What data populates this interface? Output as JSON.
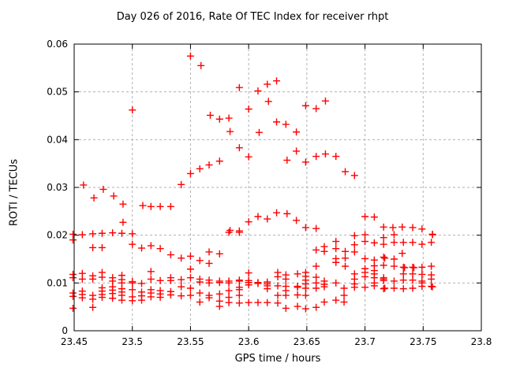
{
  "chart_data": {
    "type": "scatter",
    "title": "Day 026 of 2016, Rate Of TEC Index for receiver rhpt",
    "xlabel": "GPS time / hours",
    "ylabel": "ROTI / TECUs",
    "xlim": [
      23.45,
      23.8
    ],
    "ylim": [
      0,
      0.06
    ],
    "grid": true,
    "legend_position": "none",
    "marker": {
      "shape": "plus",
      "size": 9,
      "color": "#ff0000"
    },
    "colors": {
      "marker": "#ff0000",
      "grid": "#b0b0b0",
      "axis": "#000000",
      "background": "#ffffff"
    },
    "xticks": [
      {
        "v": 23.45,
        "label": "23.45"
      },
      {
        "v": 23.5,
        "label": "23.5"
      },
      {
        "v": 23.55,
        "label": "23.55"
      },
      {
        "v": 23.6,
        "label": "23.6"
      },
      {
        "v": 23.65,
        "label": "23.65"
      },
      {
        "v": 23.7,
        "label": "23.7"
      },
      {
        "v": 23.75,
        "label": "23.75"
      },
      {
        "v": 23.8,
        "label": "23.8"
      }
    ],
    "yticks": [
      {
        "v": 0,
        "label": "0"
      },
      {
        "v": 0.01,
        "label": "0.01"
      },
      {
        "v": 0.02,
        "label": "0.02"
      },
      {
        "v": 0.03,
        "label": "0.03"
      },
      {
        "v": 0.04,
        "label": "0.04"
      },
      {
        "v": 0.05,
        "label": "0.05"
      },
      {
        "v": 0.06,
        "label": "0.06"
      }
    ],
    "points": [
      [
        23.5,
        0.0462
      ],
      [
        23.55,
        0.0575
      ],
      [
        23.559,
        0.0555
      ],
      [
        23.592,
        0.0509
      ],
      [
        23.608,
        0.0502
      ],
      [
        23.616,
        0.0516
      ],
      [
        23.624,
        0.0523
      ],
      [
        23.617,
        0.048
      ],
      [
        23.6,
        0.0464
      ],
      [
        23.567,
        0.0451
      ],
      [
        23.575,
        0.0443
      ],
      [
        23.583,
        0.0445
      ],
      [
        23.584,
        0.0417
      ],
      [
        23.624,
        0.0437
      ],
      [
        23.609,
        0.0415
      ],
      [
        23.649,
        0.0471
      ],
      [
        23.658,
        0.0465
      ],
      [
        23.666,
        0.0481
      ],
      [
        23.632,
        0.0432
      ],
      [
        23.641,
        0.0416
      ],
      [
        23.458,
        0.0305
      ],
      [
        23.475,
        0.0296
      ],
      [
        23.467,
        0.0278
      ],
      [
        23.484,
        0.0282
      ],
      [
        23.492,
        0.0265
      ],
      [
        23.509,
        0.0262
      ],
      [
        23.516,
        0.026
      ],
      [
        23.524,
        0.026
      ],
      [
        23.533,
        0.026
      ],
      [
        23.492,
        0.0227
      ],
      [
        23.542,
        0.0306
      ],
      [
        23.55,
        0.0329
      ],
      [
        23.558,
        0.0339
      ],
      [
        23.566,
        0.0347
      ],
      [
        23.575,
        0.0355
      ],
      [
        23.592,
        0.0383
      ],
      [
        23.6,
        0.0364
      ],
      [
        23.633,
        0.0357
      ],
      [
        23.641,
        0.0376
      ],
      [
        23.649,
        0.0353
      ],
      [
        23.658,
        0.0365
      ],
      [
        23.666,
        0.037
      ],
      [
        23.675,
        0.0365
      ],
      [
        23.683,
        0.0333
      ],
      [
        23.691,
        0.0325
      ],
      [
        23.584,
        0.021
      ],
      [
        23.592,
        0.0209
      ],
      [
        23.6,
        0.0228
      ],
      [
        23.608,
        0.0239
      ],
      [
        23.616,
        0.0234
      ],
      [
        23.624,
        0.0247
      ],
      [
        23.633,
        0.0245
      ],
      [
        23.641,
        0.0231
      ],
      [
        23.649,
        0.0216
      ],
      [
        23.658,
        0.0214
      ],
      [
        23.7,
        0.0239
      ],
      [
        23.708,
        0.0238
      ],
      [
        23.716,
        0.0217
      ],
      [
        23.724,
        0.0216
      ],
      [
        23.732,
        0.0217
      ],
      [
        23.741,
        0.0216
      ],
      [
        23.749,
        0.0213
      ],
      [
        23.758,
        0.0202
      ],
      [
        23.449,
        0.0202
      ],
      [
        23.457,
        0.0201
      ],
      [
        23.466,
        0.0203
      ],
      [
        23.474,
        0.0204
      ],
      [
        23.483,
        0.0205
      ],
      [
        23.491,
        0.0204
      ],
      [
        23.5,
        0.0203
      ],
      [
        23.583,
        0.0206
      ],
      [
        23.592,
        0.0206
      ],
      [
        23.449,
        0.019
      ],
      [
        23.466,
        0.0174
      ],
      [
        23.474,
        0.0174
      ],
      [
        23.5,
        0.0181
      ],
      [
        23.508,
        0.0173
      ],
      [
        23.516,
        0.0178
      ],
      [
        23.524,
        0.0172
      ],
      [
        23.533,
        0.0159
      ],
      [
        23.542,
        0.0152
      ],
      [
        23.55,
        0.0156
      ],
      [
        23.566,
        0.0165
      ],
      [
        23.575,
        0.0161
      ],
      [
        23.558,
        0.0147
      ],
      [
        23.566,
        0.0141
      ],
      [
        23.55,
        0.0129
      ],
      [
        23.675,
        0.0187
      ],
      [
        23.691,
        0.0199
      ],
      [
        23.691,
        0.018
      ],
      [
        23.7,
        0.0201
      ],
      [
        23.7,
        0.0187
      ],
      [
        23.708,
        0.0184
      ],
      [
        23.716,
        0.0195
      ],
      [
        23.716,
        0.0181
      ],
      [
        23.658,
        0.0169
      ],
      [
        23.665,
        0.0176
      ],
      [
        23.665,
        0.0166
      ],
      [
        23.675,
        0.0172
      ],
      [
        23.675,
        0.0151
      ],
      [
        23.675,
        0.0143
      ],
      [
        23.683,
        0.0166
      ],
      [
        23.683,
        0.0152
      ],
      [
        23.683,
        0.0135
      ],
      [
        23.691,
        0.0165
      ],
      [
        23.7,
        0.0151
      ],
      [
        23.708,
        0.0148
      ],
      [
        23.708,
        0.0136
      ],
      [
        23.716,
        0.0154
      ],
      [
        23.716,
        0.0137
      ],
      [
        23.658,
        0.0135
      ],
      [
        23.725,
        0.0201
      ],
      [
        23.758,
        0.0201
      ],
      [
        23.725,
        0.0185
      ],
      [
        23.733,
        0.0185
      ],
      [
        23.741,
        0.0185
      ],
      [
        23.749,
        0.0181
      ],
      [
        23.757,
        0.0185
      ],
      [
        23.732,
        0.0162
      ],
      [
        23.725,
        0.015
      ],
      [
        23.717,
        0.0152
      ],
      [
        23.725,
        0.0135
      ],
      [
        23.733,
        0.0133
      ],
      [
        23.734,
        0.0132
      ],
      [
        23.741,
        0.0133
      ],
      [
        23.742,
        0.0132
      ],
      [
        23.749,
        0.0133
      ],
      [
        23.757,
        0.0135
      ],
      [
        23.733,
        0.0119
      ],
      [
        23.741,
        0.0119
      ],
      [
        23.749,
        0.0118
      ],
      [
        23.757,
        0.0117
      ],
      [
        23.449,
        0.0118
      ],
      [
        23.449,
        0.0111
      ],
      [
        23.457,
        0.012
      ],
      [
        23.457,
        0.0108
      ],
      [
        23.466,
        0.0115
      ],
      [
        23.466,
        0.0108
      ],
      [
        23.474,
        0.0122
      ],
      [
        23.474,
        0.0112
      ],
      [
        23.483,
        0.0111
      ],
      [
        23.483,
        0.0104
      ],
      [
        23.491,
        0.0116
      ],
      [
        23.491,
        0.0107
      ],
      [
        23.491,
        0.01
      ],
      [
        23.5,
        0.0103
      ],
      [
        23.5,
        0.01
      ],
      [
        23.508,
        0.0099
      ],
      [
        23.516,
        0.0124
      ],
      [
        23.516,
        0.0108
      ],
      [
        23.524,
        0.0105
      ],
      [
        23.533,
        0.0111
      ],
      [
        23.533,
        0.0105
      ],
      [
        23.542,
        0.0107
      ],
      [
        23.55,
        0.0111
      ],
      [
        23.558,
        0.0108
      ],
      [
        23.558,
        0.0102
      ],
      [
        23.566,
        0.0106
      ],
      [
        23.566,
        0.01
      ],
      [
        23.575,
        0.0104
      ],
      [
        23.575,
        0.0101
      ],
      [
        23.583,
        0.0104
      ],
      [
        23.583,
        0.01
      ],
      [
        23.592,
        0.0106
      ],
      [
        23.592,
        0.0104
      ],
      [
        23.6,
        0.0121
      ],
      [
        23.6,
        0.0105
      ],
      [
        23.6,
        0.0101
      ],
      [
        23.6,
        0.0096
      ],
      [
        23.608,
        0.0101
      ],
      [
        23.608,
        0.0099
      ],
      [
        23.616,
        0.0102
      ],
      [
        23.616,
        0.0098
      ],
      [
        23.616,
        0.0094
      ],
      [
        23.616,
        0.0088
      ],
      [
        23.625,
        0.0122
      ],
      [
        23.625,
        0.0113
      ],
      [
        23.625,
        0.0094
      ],
      [
        23.449,
        0.0079
      ],
      [
        23.449,
        0.0072
      ],
      [
        23.457,
        0.0083
      ],
      [
        23.457,
        0.0076
      ],
      [
        23.457,
        0.0069
      ],
      [
        23.466,
        0.0074
      ],
      [
        23.466,
        0.0066
      ],
      [
        23.474,
        0.009
      ],
      [
        23.474,
        0.0083
      ],
      [
        23.474,
        0.0076
      ],
      [
        23.474,
        0.007
      ],
      [
        23.483,
        0.0092
      ],
      [
        23.483,
        0.0085
      ],
      [
        23.483,
        0.0078
      ],
      [
        23.483,
        0.0068
      ],
      [
        23.491,
        0.0088
      ],
      [
        23.491,
        0.0081
      ],
      [
        23.491,
        0.0074
      ],
      [
        23.491,
        0.0064
      ],
      [
        23.5,
        0.0086
      ],
      [
        23.5,
        0.0071
      ],
      [
        23.5,
        0.0063
      ],
      [
        23.508,
        0.0081
      ],
      [
        23.508,
        0.0073
      ],
      [
        23.508,
        0.0064
      ],
      [
        23.516,
        0.0086
      ],
      [
        23.516,
        0.0079
      ],
      [
        23.516,
        0.0071
      ],
      [
        23.524,
        0.0084
      ],
      [
        23.524,
        0.0077
      ],
      [
        23.524,
        0.007
      ],
      [
        23.533,
        0.0082
      ],
      [
        23.533,
        0.0075
      ],
      [
        23.542,
        0.0092
      ],
      [
        23.542,
        0.0073
      ],
      [
        23.55,
        0.0089
      ],
      [
        23.55,
        0.0074
      ],
      [
        23.558,
        0.0079
      ],
      [
        23.558,
        0.006
      ],
      [
        23.566,
        0.0074
      ],
      [
        23.566,
        0.0069
      ],
      [
        23.575,
        0.0077
      ],
      [
        23.575,
        0.0062
      ],
      [
        23.575,
        0.0051
      ],
      [
        23.583,
        0.0084
      ],
      [
        23.583,
        0.007
      ],
      [
        23.583,
        0.0059
      ],
      [
        23.592,
        0.0091
      ],
      [
        23.592,
        0.0086
      ],
      [
        23.592,
        0.0074
      ],
      [
        23.592,
        0.0058
      ],
      [
        23.6,
        0.0059
      ],
      [
        23.608,
        0.0059
      ],
      [
        23.616,
        0.0059
      ],
      [
        23.625,
        0.0074
      ],
      [
        23.625,
        0.0058
      ],
      [
        23.632,
        0.0117
      ],
      [
        23.632,
        0.0108
      ],
      [
        23.632,
        0.0093
      ],
      [
        23.632,
        0.0084
      ],
      [
        23.632,
        0.0074
      ],
      [
        23.632,
        0.0047
      ],
      [
        23.642,
        0.0119
      ],
      [
        23.642,
        0.0093
      ],
      [
        23.642,
        0.0091
      ],
      [
        23.642,
        0.0075
      ],
      [
        23.642,
        0.0051
      ],
      [
        23.649,
        0.0122
      ],
      [
        23.649,
        0.0114
      ],
      [
        23.649,
        0.0106
      ],
      [
        23.649,
        0.0098
      ],
      [
        23.649,
        0.0089
      ],
      [
        23.649,
        0.0074
      ],
      [
        23.649,
        0.0046
      ],
      [
        23.658,
        0.0112
      ],
      [
        23.658,
        0.01
      ],
      [
        23.658,
        0.0089
      ],
      [
        23.658,
        0.0049
      ],
      [
        23.665,
        0.0104
      ],
      [
        23.665,
        0.0097
      ],
      [
        23.665,
        0.0092
      ],
      [
        23.665,
        0.006
      ],
      [
        23.675,
        0.01
      ],
      [
        23.675,
        0.0064
      ],
      [
        23.682,
        0.0089
      ],
      [
        23.682,
        0.0074
      ],
      [
        23.682,
        0.006
      ],
      [
        23.691,
        0.0119
      ],
      [
        23.691,
        0.0108
      ],
      [
        23.691,
        0.0098
      ],
      [
        23.691,
        0.0091
      ],
      [
        23.7,
        0.013
      ],
      [
        23.7,
        0.0122
      ],
      [
        23.7,
        0.0113
      ],
      [
        23.7,
        0.0091
      ],
      [
        23.708,
        0.0126
      ],
      [
        23.708,
        0.0119
      ],
      [
        23.708,
        0.0111
      ],
      [
        23.708,
        0.01
      ],
      [
        23.708,
        0.0094
      ],
      [
        23.716,
        0.0111
      ],
      [
        23.716,
        0.0108
      ],
      [
        23.716,
        0.0105
      ],
      [
        23.716,
        0.0088
      ],
      [
        23.725,
        0.0104
      ],
      [
        23.733,
        0.0106
      ],
      [
        23.741,
        0.0106
      ],
      [
        23.749,
        0.0104
      ],
      [
        23.749,
        0.01
      ],
      [
        23.757,
        0.0108
      ],
      [
        23.725,
        0.0089
      ],
      [
        23.733,
        0.0088
      ],
      [
        23.741,
        0.0089
      ],
      [
        23.749,
        0.0093
      ],
      [
        23.757,
        0.0093
      ],
      [
        23.758,
        0.0092
      ],
      [
        23.717,
        0.0089
      ],
      [
        23.449,
        0.0047
      ],
      [
        23.466,
        0.0049
      ]
    ]
  }
}
